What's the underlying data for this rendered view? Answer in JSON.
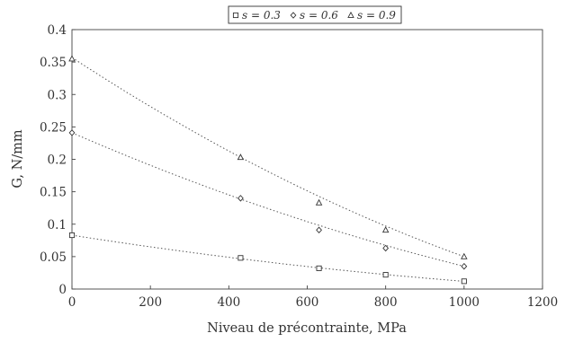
{
  "chart_data": {
    "type": "scatter",
    "title": "",
    "xlabel": "Niveau de précontrainte, MPa",
    "ylabel": "G, N/mm",
    "xlim": [
      0,
      1200
    ],
    "ylim": [
      0,
      0.4
    ],
    "xticks": [
      0,
      200,
      400,
      600,
      800,
      1000,
      1200
    ],
    "yticks": [
      0,
      0.05,
      0.1,
      0.15,
      0.2,
      0.25,
      0.3,
      0.35,
      0.4
    ],
    "xtick_labels": [
      "0",
      "200",
      "400",
      "600",
      "800",
      "1000",
      "1200"
    ],
    "ytick_labels": [
      "0",
      "0.05",
      "0.1",
      "0.15",
      "0.2",
      "0.25",
      "0.3",
      "0.35",
      "0.4"
    ],
    "grid": false,
    "legend_position": "top-center",
    "trendlines": "dotted quadratic fit per series",
    "series": [
      {
        "name": "s = 0.3",
        "marker": "square",
        "x": [
          0,
          430,
          630,
          800,
          1000
        ],
        "y": [
          0.083,
          0.048,
          0.032,
          0.022,
          0.012
        ],
        "fit": [
          0.083,
          -9.45e-05,
          2.34e-08
        ]
      },
      {
        "name": "s = 0.6",
        "marker": "diamond",
        "x": [
          0,
          430,
          630,
          800,
          1000
        ],
        "y": [
          0.241,
          0.14,
          0.091,
          0.063,
          0.035
        ],
        "fit": [
          0.241,
          -0.000262,
          5.61e-08
        ]
      },
      {
        "name": "s = 0.9",
        "marker": "triangle",
        "x": [
          0,
          430,
          630,
          800,
          1000
        ],
        "y": [
          0.355,
          0.203,
          0.133,
          0.091,
          0.05
        ],
        "fit": [
          0.357,
          -0.000396,
          8.9e-08
        ]
      }
    ]
  }
}
